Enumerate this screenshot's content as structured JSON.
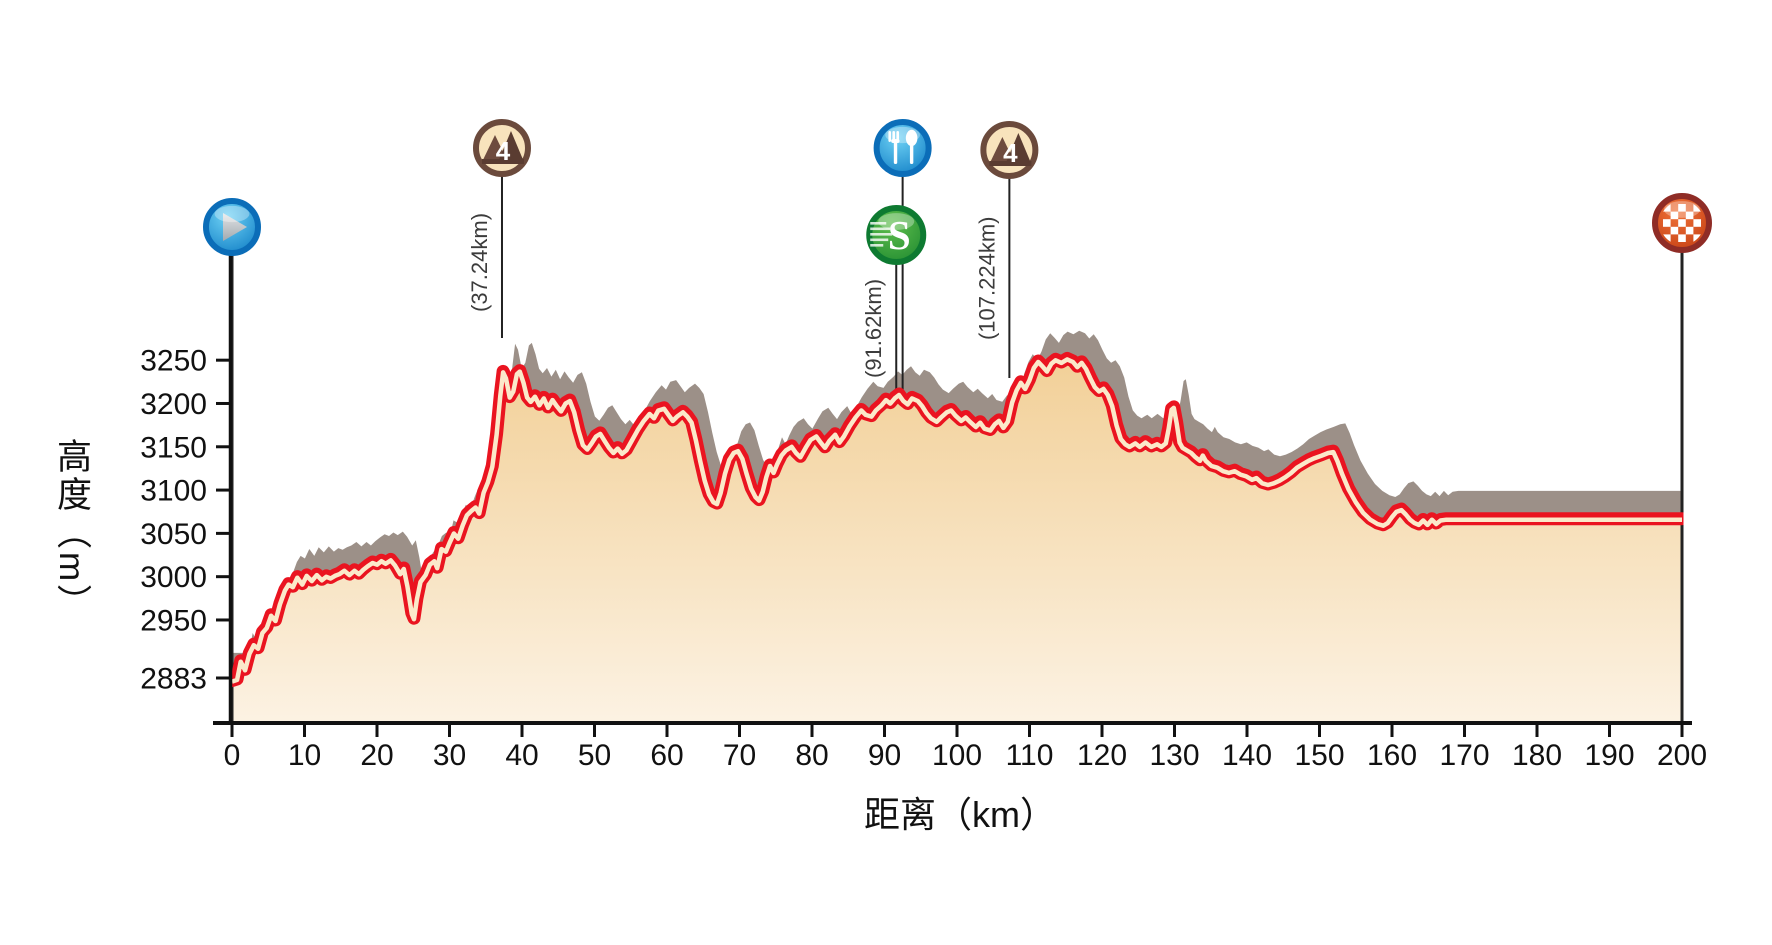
{
  "chart_data": {
    "type": "area",
    "title": "",
    "xlabel": "距离（km）",
    "ylabel": "高度（m）",
    "x_ticks": [
      0,
      10,
      20,
      30,
      40,
      50,
      60,
      70,
      80,
      90,
      100,
      110,
      120,
      130,
      140,
      150,
      160,
      170,
      180,
      190,
      200
    ],
    "y_ticks": [
      2883,
      2950,
      3000,
      3050,
      3100,
      3150,
      3200,
      3250
    ],
    "xlim": [
      0,
      200
    ],
    "ylim": [
      2883,
      3250
    ],
    "grid": false,
    "legend": "none",
    "profile_points_km_m": [
      [
        0,
        2880
      ],
      [
        0.7,
        2882
      ],
      [
        1.2,
        2903
      ],
      [
        1.8,
        2893
      ],
      [
        2.4,
        2912
      ],
      [
        3,
        2922
      ],
      [
        3.6,
        2918
      ],
      [
        4.2,
        2936
      ],
      [
        4.8,
        2942
      ],
      [
        5.4,
        2956
      ],
      [
        6,
        2950
      ],
      [
        6.6,
        2969
      ],
      [
        7.3,
        2985
      ],
      [
        7.8,
        2992
      ],
      [
        8.4,
        2989
      ],
      [
        9,
        3000
      ],
      [
        9.7,
        2992
      ],
      [
        10.3,
        3002
      ],
      [
        11,
        2996
      ],
      [
        11.7,
        3003
      ],
      [
        12.4,
        2997
      ],
      [
        13,
        3001
      ],
      [
        13.6,
        2999
      ],
      [
        14.2,
        3002
      ],
      [
        14.8,
        3004
      ],
      [
        15.5,
        3008
      ],
      [
        16.2,
        3003
      ],
      [
        16.9,
        3008
      ],
      [
        17.5,
        3004
      ],
      [
        18.1,
        3009
      ],
      [
        18.7,
        3013
      ],
      [
        19.4,
        3017
      ],
      [
        20,
        3015
      ],
      [
        20.6,
        3019
      ],
      [
        21.2,
        3016
      ],
      [
        21.9,
        3020
      ],
      [
        22.5,
        3014
      ],
      [
        23.2,
        3004
      ],
      [
        23.7,
        3010
      ],
      [
        24.2,
        2990
      ],
      [
        24.8,
        2958
      ],
      [
        25.1,
        2952
      ],
      [
        25.5,
        2975
      ],
      [
        26,
        2995
      ],
      [
        26.7,
        3003
      ],
      [
        27.3,
        3015
      ],
      [
        27.9,
        3019
      ],
      [
        28.3,
        3011
      ],
      [
        28.9,
        3033
      ],
      [
        29.5,
        3030
      ],
      [
        30,
        3040
      ],
      [
        30.6,
        3051
      ],
      [
        31.2,
        3045
      ],
      [
        31.8,
        3060
      ],
      [
        32.4,
        3072
      ],
      [
        33,
        3077
      ],
      [
        33.6,
        3081
      ],
      [
        34.1,
        3074
      ],
      [
        34.7,
        3098
      ],
      [
        35.3,
        3110
      ],
      [
        35.9,
        3128
      ],
      [
        36.5,
        3165
      ],
      [
        37,
        3210
      ],
      [
        37.4,
        3237
      ],
      [
        37.8,
        3230
      ],
      [
        38.3,
        3208
      ],
      [
        38.8,
        3215
      ],
      [
        39.3,
        3235
      ],
      [
        39.7,
        3238
      ],
      [
        40.2,
        3225
      ],
      [
        40.7,
        3208
      ],
      [
        41.2,
        3203
      ],
      [
        41.8,
        3209
      ],
      [
        42.4,
        3199
      ],
      [
        43,
        3207
      ],
      [
        43.6,
        3196
      ],
      [
        44.2,
        3205
      ],
      [
        44.8,
        3198
      ],
      [
        45.4,
        3192
      ],
      [
        46,
        3201
      ],
      [
        46.6,
        3204
      ],
      [
        47.2,
        3191
      ],
      [
        47.8,
        3170
      ],
      [
        48.4,
        3153
      ],
      [
        49,
        3148
      ],
      [
        49.6,
        3155
      ],
      [
        50.2,
        3163
      ],
      [
        50.8,
        3166
      ],
      [
        51.4,
        3158
      ],
      [
        52,
        3150
      ],
      [
        52.6,
        3144
      ],
      [
        53.2,
        3149
      ],
      [
        53.8,
        3143
      ],
      [
        54.4,
        3147
      ],
      [
        55.2,
        3159
      ],
      [
        56,
        3171
      ],
      [
        56.8,
        3181
      ],
      [
        57.6,
        3189
      ],
      [
        58.2,
        3184
      ],
      [
        58.8,
        3193
      ],
      [
        59.6,
        3195
      ],
      [
        60.2,
        3188
      ],
      [
        60.8,
        3181
      ],
      [
        61.4,
        3186
      ],
      [
        62.2,
        3191
      ],
      [
        62.8,
        3186
      ],
      [
        63.4,
        3179
      ],
      [
        64,
        3158
      ],
      [
        64.6,
        3134
      ],
      [
        65.2,
        3112
      ],
      [
        65.8,
        3096
      ],
      [
        66.4,
        3087
      ],
      [
        66.9,
        3085
      ],
      [
        67.4,
        3098
      ],
      [
        68,
        3120
      ],
      [
        68.6,
        3136
      ],
      [
        69.2,
        3144
      ],
      [
        69.8,
        3146
      ],
      [
        70.4,
        3137
      ],
      [
        71,
        3119
      ],
      [
        71.6,
        3103
      ],
      [
        72.2,
        3093
      ],
      [
        72.7,
        3089
      ],
      [
        73.2,
        3099
      ],
      [
        73.7,
        3116
      ],
      [
        74.2,
        3129
      ],
      [
        74.7,
        3121
      ],
      [
        75.2,
        3131
      ],
      [
        75.8,
        3141
      ],
      [
        76.4,
        3147
      ],
      [
        77.2,
        3151
      ],
      [
        77.8,
        3144
      ],
      [
        78.4,
        3139
      ],
      [
        79.2,
        3151
      ],
      [
        79.8,
        3159
      ],
      [
        80.6,
        3163
      ],
      [
        81.2,
        3156
      ],
      [
        81.8,
        3150
      ],
      [
        82.4,
        3158
      ],
      [
        83.2,
        3165
      ],
      [
        83.8,
        3156
      ],
      [
        84.4,
        3163
      ],
      [
        85.2,
        3175
      ],
      [
        86,
        3185
      ],
      [
        86.8,
        3193
      ],
      [
        87.4,
        3188
      ],
      [
        88.2,
        3186
      ],
      [
        88.8,
        3193
      ],
      [
        89.6,
        3199
      ],
      [
        90.2,
        3205
      ],
      [
        90.8,
        3201
      ],
      [
        91.4,
        3207
      ],
      [
        92,
        3211
      ],
      [
        92.6,
        3204
      ],
      [
        93.2,
        3200
      ],
      [
        93.8,
        3207
      ],
      [
        94.6,
        3204
      ],
      [
        95.2,
        3198
      ],
      [
        95.8,
        3190
      ],
      [
        96.4,
        3184
      ],
      [
        97.2,
        3180
      ],
      [
        97.8,
        3185
      ],
      [
        98.6,
        3191
      ],
      [
        99.2,
        3193
      ],
      [
        99.8,
        3187
      ],
      [
        100.6,
        3181
      ],
      [
        101.2,
        3185
      ],
      [
        101.8,
        3180
      ],
      [
        102.6,
        3174
      ],
      [
        103.2,
        3179
      ],
      [
        103.8,
        3172
      ],
      [
        104.6,
        3170
      ],
      [
        105.2,
        3177
      ],
      [
        105.8,
        3181
      ],
      [
        106.4,
        3173
      ],
      [
        107,
        3180
      ],
      [
        107.6,
        3202
      ],
      [
        108.2,
        3216
      ],
      [
        108.8,
        3225
      ],
      [
        109.4,
        3218
      ],
      [
        110,
        3228
      ],
      [
        110.6,
        3242
      ],
      [
        111.2,
        3249
      ],
      [
        111.8,
        3244
      ],
      [
        112.4,
        3238
      ],
      [
        113,
        3247
      ],
      [
        113.6,
        3251
      ],
      [
        114.4,
        3248
      ],
      [
        115.2,
        3252
      ],
      [
        116,
        3249
      ],
      [
        116.6,
        3243
      ],
      [
        117.2,
        3248
      ],
      [
        117.8,
        3241
      ],
      [
        118.4,
        3230
      ],
      [
        119,
        3220
      ],
      [
        119.6,
        3215
      ],
      [
        120.2,
        3218
      ],
      [
        120.8,
        3211
      ],
      [
        121.4,
        3198
      ],
      [
        122,
        3176
      ],
      [
        122.6,
        3160
      ],
      [
        123.2,
        3154
      ],
      [
        123.8,
        3151
      ],
      [
        124.6,
        3155
      ],
      [
        125.2,
        3151
      ],
      [
        126,
        3156
      ],
      [
        126.8,
        3151
      ],
      [
        127.6,
        3154
      ],
      [
        128.2,
        3151
      ],
      [
        128.8,
        3155
      ],
      [
        129.2,
        3172
      ],
      [
        129.6,
        3194
      ],
      [
        129.9,
        3196
      ],
      [
        130.3,
        3178
      ],
      [
        130.7,
        3156
      ],
      [
        131.1,
        3150
      ],
      [
        131.7,
        3147
      ],
      [
        132.3,
        3144
      ],
      [
        132.9,
        3139
      ],
      [
        133.5,
        3135
      ],
      [
        133.9,
        3141
      ],
      [
        134.3,
        3135
      ],
      [
        135.1,
        3129
      ],
      [
        135.9,
        3127
      ],
      [
        136.7,
        3123
      ],
      [
        137.5,
        3121
      ],
      [
        138.3,
        3123
      ],
      [
        139.1,
        3119
      ],
      [
        139.9,
        3117
      ],
      [
        140.7,
        3113
      ],
      [
        141.3,
        3115
      ],
      [
        142.1,
        3109
      ],
      [
        142.9,
        3107
      ],
      [
        143.7,
        3109
      ],
      [
        144.5,
        3112
      ],
      [
        145.3,
        3116
      ],
      [
        146.1,
        3121
      ],
      [
        146.9,
        3127
      ],
      [
        147.7,
        3131
      ],
      [
        148.5,
        3135
      ],
      [
        149.3,
        3138
      ],
      [
        150.3,
        3141
      ],
      [
        151.2,
        3144
      ],
      [
        151.9,
        3145
      ],
      [
        152.5,
        3134
      ],
      [
        153.1,
        3120
      ],
      [
        154,
        3102
      ],
      [
        155,
        3087
      ],
      [
        156,
        3075
      ],
      [
        157,
        3067
      ],
      [
        158,
        3062
      ],
      [
        158.8,
        3060
      ],
      [
        159.4,
        3063
      ],
      [
        160,
        3070
      ],
      [
        160.6,
        3076
      ],
      [
        161.3,
        3078
      ],
      [
        161.9,
        3073
      ],
      [
        162.5,
        3067
      ],
      [
        163.1,
        3063
      ],
      [
        163.7,
        3061
      ],
      [
        164.3,
        3066
      ],
      [
        164.9,
        3061
      ],
      [
        165.5,
        3067
      ],
      [
        166.1,
        3062
      ],
      [
        166.7,
        3066
      ],
      [
        167.5,
        3067
      ],
      [
        170,
        3067
      ],
      [
        175,
        3067
      ],
      [
        180,
        3067
      ],
      [
        185,
        3067
      ],
      [
        190,
        3067
      ],
      [
        195,
        3067
      ],
      [
        200,
        3067
      ]
    ],
    "markers": [
      {
        "id": "start",
        "type": "start",
        "km": 0,
        "icon": "play-icon",
        "label": ""
      },
      {
        "id": "climb-1",
        "type": "climb",
        "km": 37.24,
        "category": "4",
        "icon": "mountain-category-icon",
        "label": "(37.24km)"
      },
      {
        "id": "sprint",
        "type": "sprint",
        "km": 91.62,
        "icon": "sprint-s-icon",
        "icon_text": "S",
        "label": "(91.62km)"
      },
      {
        "id": "feed",
        "type": "feed",
        "km": 92.5,
        "icon": "feed-station-icon",
        "label": ""
      },
      {
        "id": "climb-2",
        "type": "climb",
        "km": 107.224,
        "category": "4",
        "icon": "mountain-category-icon",
        "label": "(107.224km)"
      },
      {
        "id": "finish",
        "type": "finish",
        "km": 200,
        "icon": "finish-checkered-icon",
        "label": ""
      }
    ],
    "colors": {
      "line_red": "#EA1420",
      "line_core": "#FBE9CA",
      "fill_top": "#F2D098",
      "fill_bottom": "#FCF2E3",
      "shadow_gray": "#9C9088",
      "axis": "#111111",
      "stem": "#222222",
      "marker_label_text": "#3C3C3C",
      "blue_ring": "#0B6DB8",
      "blue_hi": "#6FD2F5",
      "blue_lo": "#0E7CC4",
      "green_ring": "#0E7A31",
      "green_hi": "#5FBE4D",
      "green_lo": "#1F8A30",
      "brown_ring": "#6B4A3C",
      "brown_bg": "#F8E3BC",
      "brown_dark": "#5A3C31",
      "brown_mid": "#6E4B3E",
      "finish_ring": "#8F2C26",
      "finish_hi": "#F07238",
      "finish_lo": "#C23D12"
    }
  }
}
